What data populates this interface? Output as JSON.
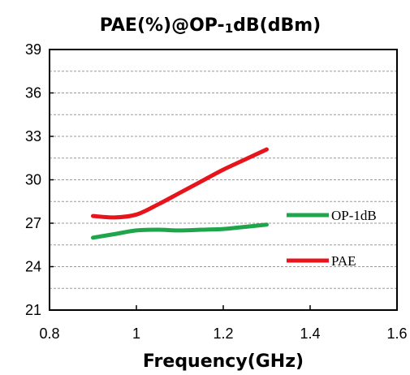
{
  "chart_data": {
    "type": "line",
    "title": "PAE(%)@OP-1dB(dBm)",
    "title_parts": {
      "pre": "PAE(%)@OP-",
      "sub": "1",
      "post": "dB(dBm)"
    },
    "xlabel": "Frequency(GHz)",
    "ylabel": "",
    "xlim": [
      0.8,
      1.6
    ],
    "ylim": [
      21,
      39
    ],
    "xticks": [
      0.8,
      1.0,
      1.2,
      1.4,
      1.6
    ],
    "xtick_labels": [
      "0.8",
      "1",
      "1.2",
      "1.4",
      "1.6"
    ],
    "yticks": [
      21,
      24,
      27,
      30,
      33,
      36,
      39
    ],
    "ytick_labels": [
      "21",
      "24",
      "27",
      "30",
      "33",
      "36",
      "39"
    ],
    "minor_grid_step": 1.5,
    "grid": true,
    "legend_placement": "right",
    "series": [
      {
        "name": "OP-1dB",
        "color": "#1fa64a",
        "x": [
          0.9,
          0.95,
          1.0,
          1.05,
          1.1,
          1.15,
          1.2,
          1.25,
          1.3
        ],
        "values": [
          26.0,
          26.25,
          26.5,
          26.55,
          26.5,
          26.55,
          26.6,
          26.75,
          26.9
        ]
      },
      {
        "name": "PAE",
        "color": "#e8141c",
        "x": [
          0.9,
          0.95,
          1.0,
          1.05,
          1.1,
          1.15,
          1.2,
          1.25,
          1.3
        ],
        "values": [
          27.5,
          27.4,
          27.6,
          28.3,
          29.1,
          29.9,
          30.7,
          31.4,
          32.1
        ]
      }
    ]
  }
}
